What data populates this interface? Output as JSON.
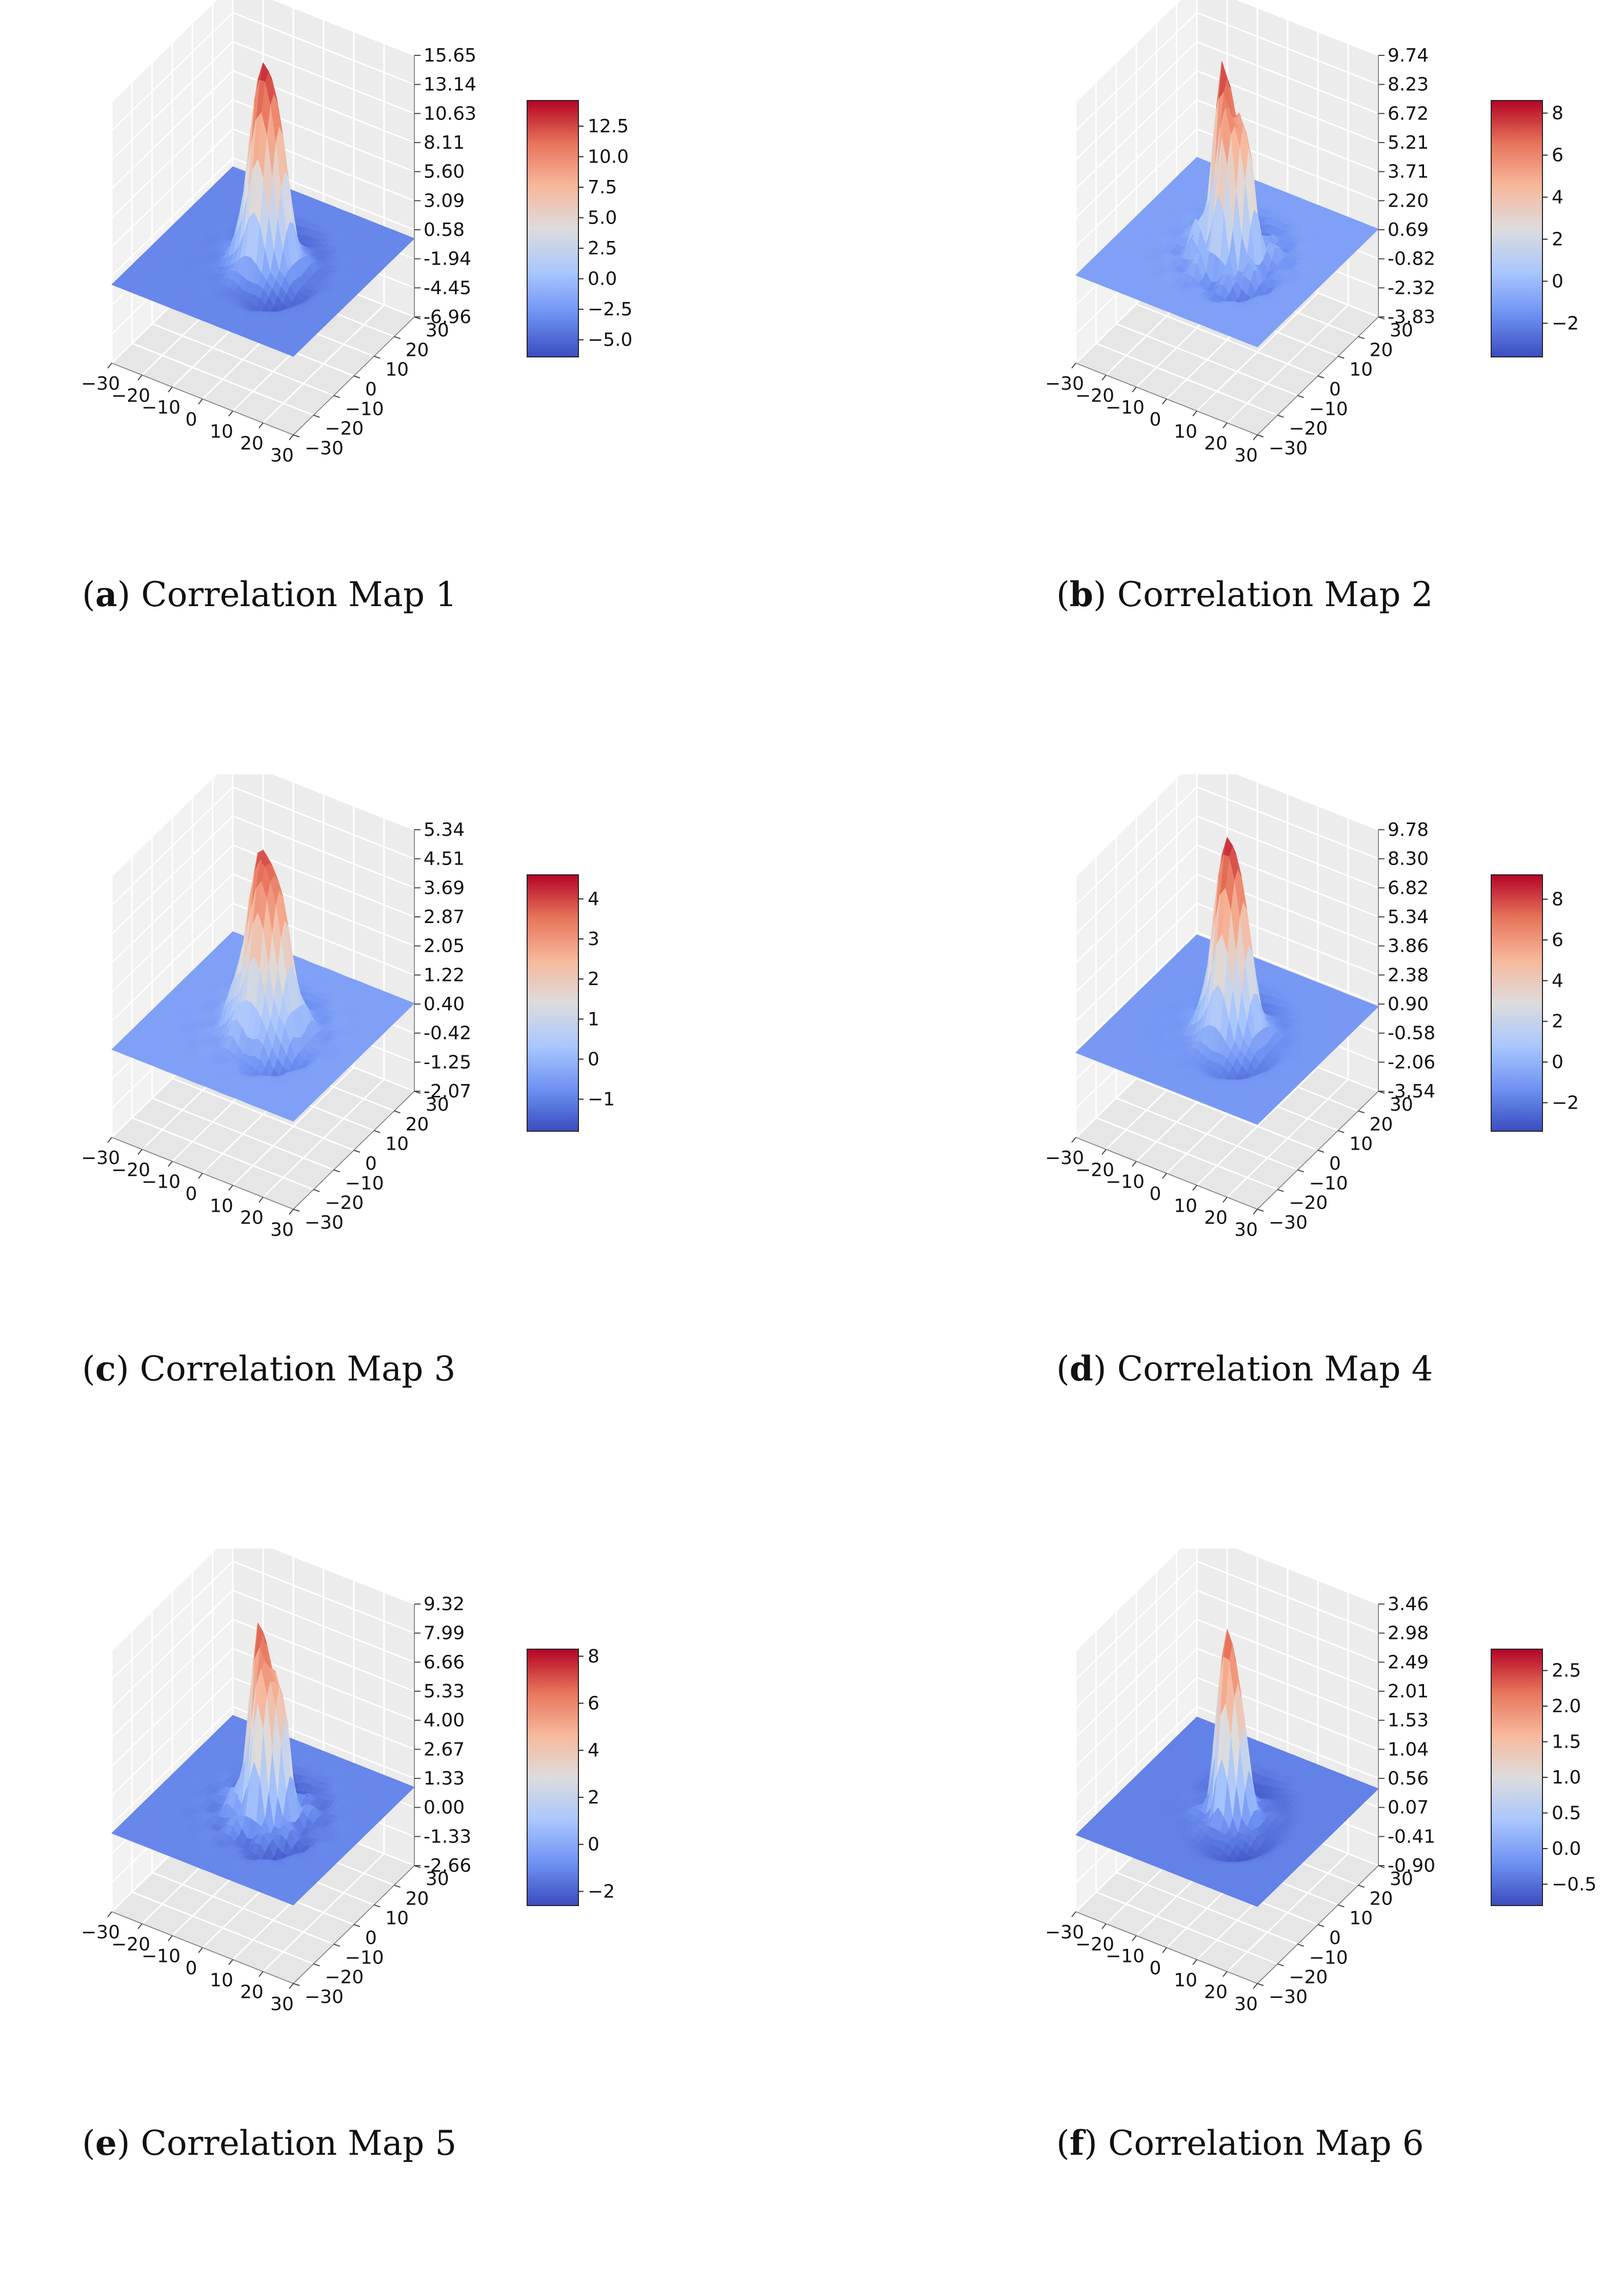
{
  "figure": {
    "x_ticks": [
      "−30",
      "−20",
      "−10",
      "0",
      "10",
      "20",
      "30"
    ],
    "y_ticks": [
      "−30",
      "−20",
      "−10",
      "0",
      "10",
      "20",
      "30"
    ],
    "colormap": [
      "#3b4cc0",
      "#6f92f3",
      "#aac7fd",
      "#dddcdc",
      "#f7b89c",
      "#e7745b",
      "#b40426"
    ]
  },
  "chart_data": [
    {
      "type": "surface3d",
      "caption_letter": "a",
      "caption_text": "Correlation Map 1",
      "zticks": [
        "15.65",
        "13.14",
        "10.63",
        "8.11",
        "5.60",
        "3.09",
        "0.58",
        "-1.94",
        "-4.45",
        "-6.96"
      ],
      "zlim": [
        -6.96,
        15.65
      ],
      "colorbar_ticks": [
        "12.5",
        "10.0",
        "7.5",
        "5.0",
        "2.5",
        "0.0",
        "−2.5",
        "−5.0"
      ],
      "colorbar_values": [
        12.5,
        10.0,
        7.5,
        5.0,
        2.5,
        0.0,
        -2.5,
        -5.0
      ],
      "colorbar_range": [
        -6.4,
        14.6
      ],
      "xlim": [
        -30,
        30
      ],
      "ylim": [
        -30,
        30
      ]
    },
    {
      "type": "surface3d",
      "caption_letter": "b",
      "caption_text": "Correlation Map 2",
      "zticks": [
        "9.74",
        "8.23",
        "6.72",
        "5.21",
        "3.71",
        "2.20",
        "0.69",
        "-0.82",
        "-2.32",
        "-3.83"
      ],
      "zlim": [
        -3.83,
        9.74
      ],
      "colorbar_ticks": [
        "8",
        "6",
        "4",
        "2",
        "0",
        "−2"
      ],
      "colorbar_values": [
        8,
        6,
        4,
        2,
        0,
        -2
      ],
      "colorbar_range": [
        -3.6,
        8.6
      ],
      "xlim": [
        -30,
        30
      ],
      "ylim": [
        -30,
        30
      ]
    },
    {
      "type": "surface3d",
      "caption_letter": "c",
      "caption_text": "Correlation Map 3",
      "zticks": [
        "5.34",
        "4.51",
        "3.69",
        "2.87",
        "2.05",
        "1.22",
        "0.40",
        "-0.42",
        "-1.25",
        "-2.07"
      ],
      "zlim": [
        -2.07,
        5.34
      ],
      "colorbar_ticks": [
        "4",
        "3",
        "2",
        "1",
        "0",
        "−1"
      ],
      "colorbar_values": [
        4,
        3,
        2,
        1,
        0,
        -1
      ],
      "colorbar_range": [
        -1.8,
        4.6
      ],
      "xlim": [
        -30,
        30
      ],
      "ylim": [
        -30,
        30
      ]
    },
    {
      "type": "surface3d",
      "caption_letter": "d",
      "caption_text": "Correlation Map 4",
      "zticks": [
        "9.78",
        "8.30",
        "6.82",
        "5.34",
        "3.86",
        "2.38",
        "0.90",
        "-0.58",
        "-2.06",
        "-3.54"
      ],
      "zlim": [
        -3.54,
        9.78
      ],
      "colorbar_ticks": [
        "8",
        "6",
        "4",
        "2",
        "0",
        "−2"
      ],
      "colorbar_values": [
        8,
        6,
        4,
        2,
        0,
        -2
      ],
      "colorbar_range": [
        -3.4,
        9.2
      ],
      "xlim": [
        -30,
        30
      ],
      "ylim": [
        -30,
        30
      ]
    },
    {
      "type": "surface3d",
      "caption_letter": "e",
      "caption_text": "Correlation Map 5",
      "zticks": [
        "9.32",
        "7.99",
        "6.66",
        "5.33",
        "4.00",
        "2.67",
        "1.33",
        "0.00",
        "-1.33",
        "-2.66"
      ],
      "zlim": [
        -2.66,
        9.32
      ],
      "colorbar_ticks": [
        "8",
        "6",
        "4",
        "2",
        "0",
        "−2"
      ],
      "colorbar_values": [
        8,
        6,
        4,
        2,
        0,
        -2
      ],
      "colorbar_range": [
        -2.6,
        8.3
      ],
      "xlim": [
        -30,
        30
      ],
      "ylim": [
        -30,
        30
      ]
    },
    {
      "type": "surface3d",
      "caption_letter": "f",
      "caption_text": "Correlation Map 6",
      "zticks": [
        "3.46",
        "2.98",
        "2.49",
        "2.01",
        "1.53",
        "1.04",
        "0.56",
        "0.07",
        "-0.41",
        "-0.90"
      ],
      "zlim": [
        -0.9,
        3.46
      ],
      "colorbar_ticks": [
        "2.5",
        "2.0",
        "1.5",
        "1.0",
        "0.5",
        "0.0",
        "−0.5"
      ],
      "colorbar_values": [
        2.5,
        2.0,
        1.5,
        1.0,
        0.5,
        0.0,
        -0.5
      ],
      "colorbar_range": [
        -0.8,
        2.8
      ],
      "xlim": [
        -30,
        30
      ],
      "ylim": [
        -30,
        30
      ]
    }
  ]
}
